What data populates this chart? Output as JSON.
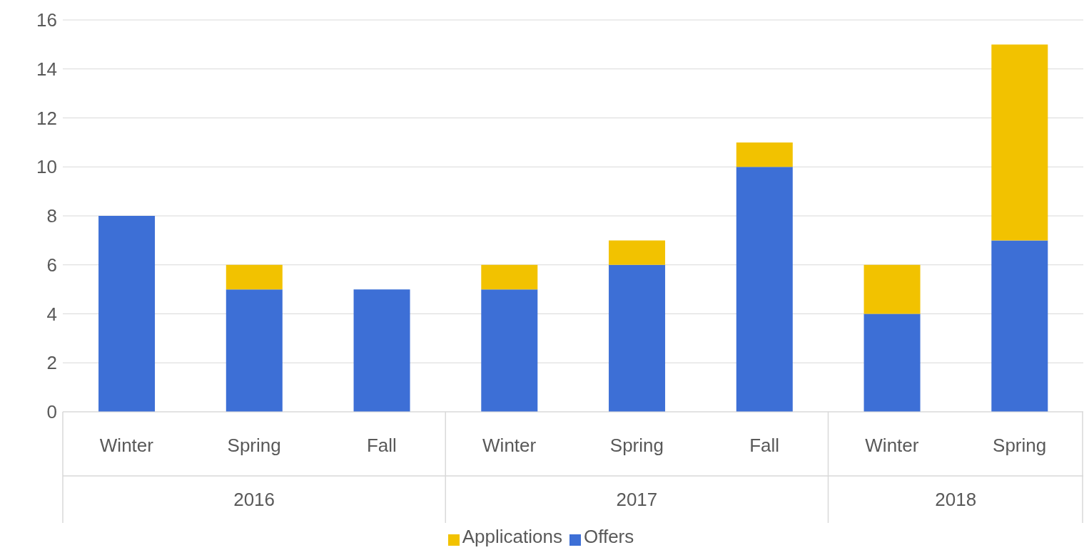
{
  "chart_data": {
    "type": "bar",
    "stacked": true,
    "categories": [
      "Winter",
      "Spring",
      "Fall",
      "Winter",
      "Spring",
      "Fall",
      "Winter",
      "Spring"
    ],
    "series": [
      {
        "name": "Offers",
        "color": "#3d6fd6",
        "values": [
          8,
          5,
          5,
          5,
          6,
          10,
          4,
          7
        ]
      },
      {
        "name": "Applications",
        "color": "#f2c200",
        "values": [
          null,
          1,
          null,
          1,
          1,
          1,
          2,
          8
        ]
      }
    ],
    "annotations": [
      "2016",
      "2017",
      "2018"
    ],
    "ylim": [
      0,
      16
    ],
    "yticks": [
      0,
      2,
      4,
      6,
      8,
      10,
      12,
      14,
      16
    ],
    "grid": "y",
    "legend": "bottom"
  }
}
